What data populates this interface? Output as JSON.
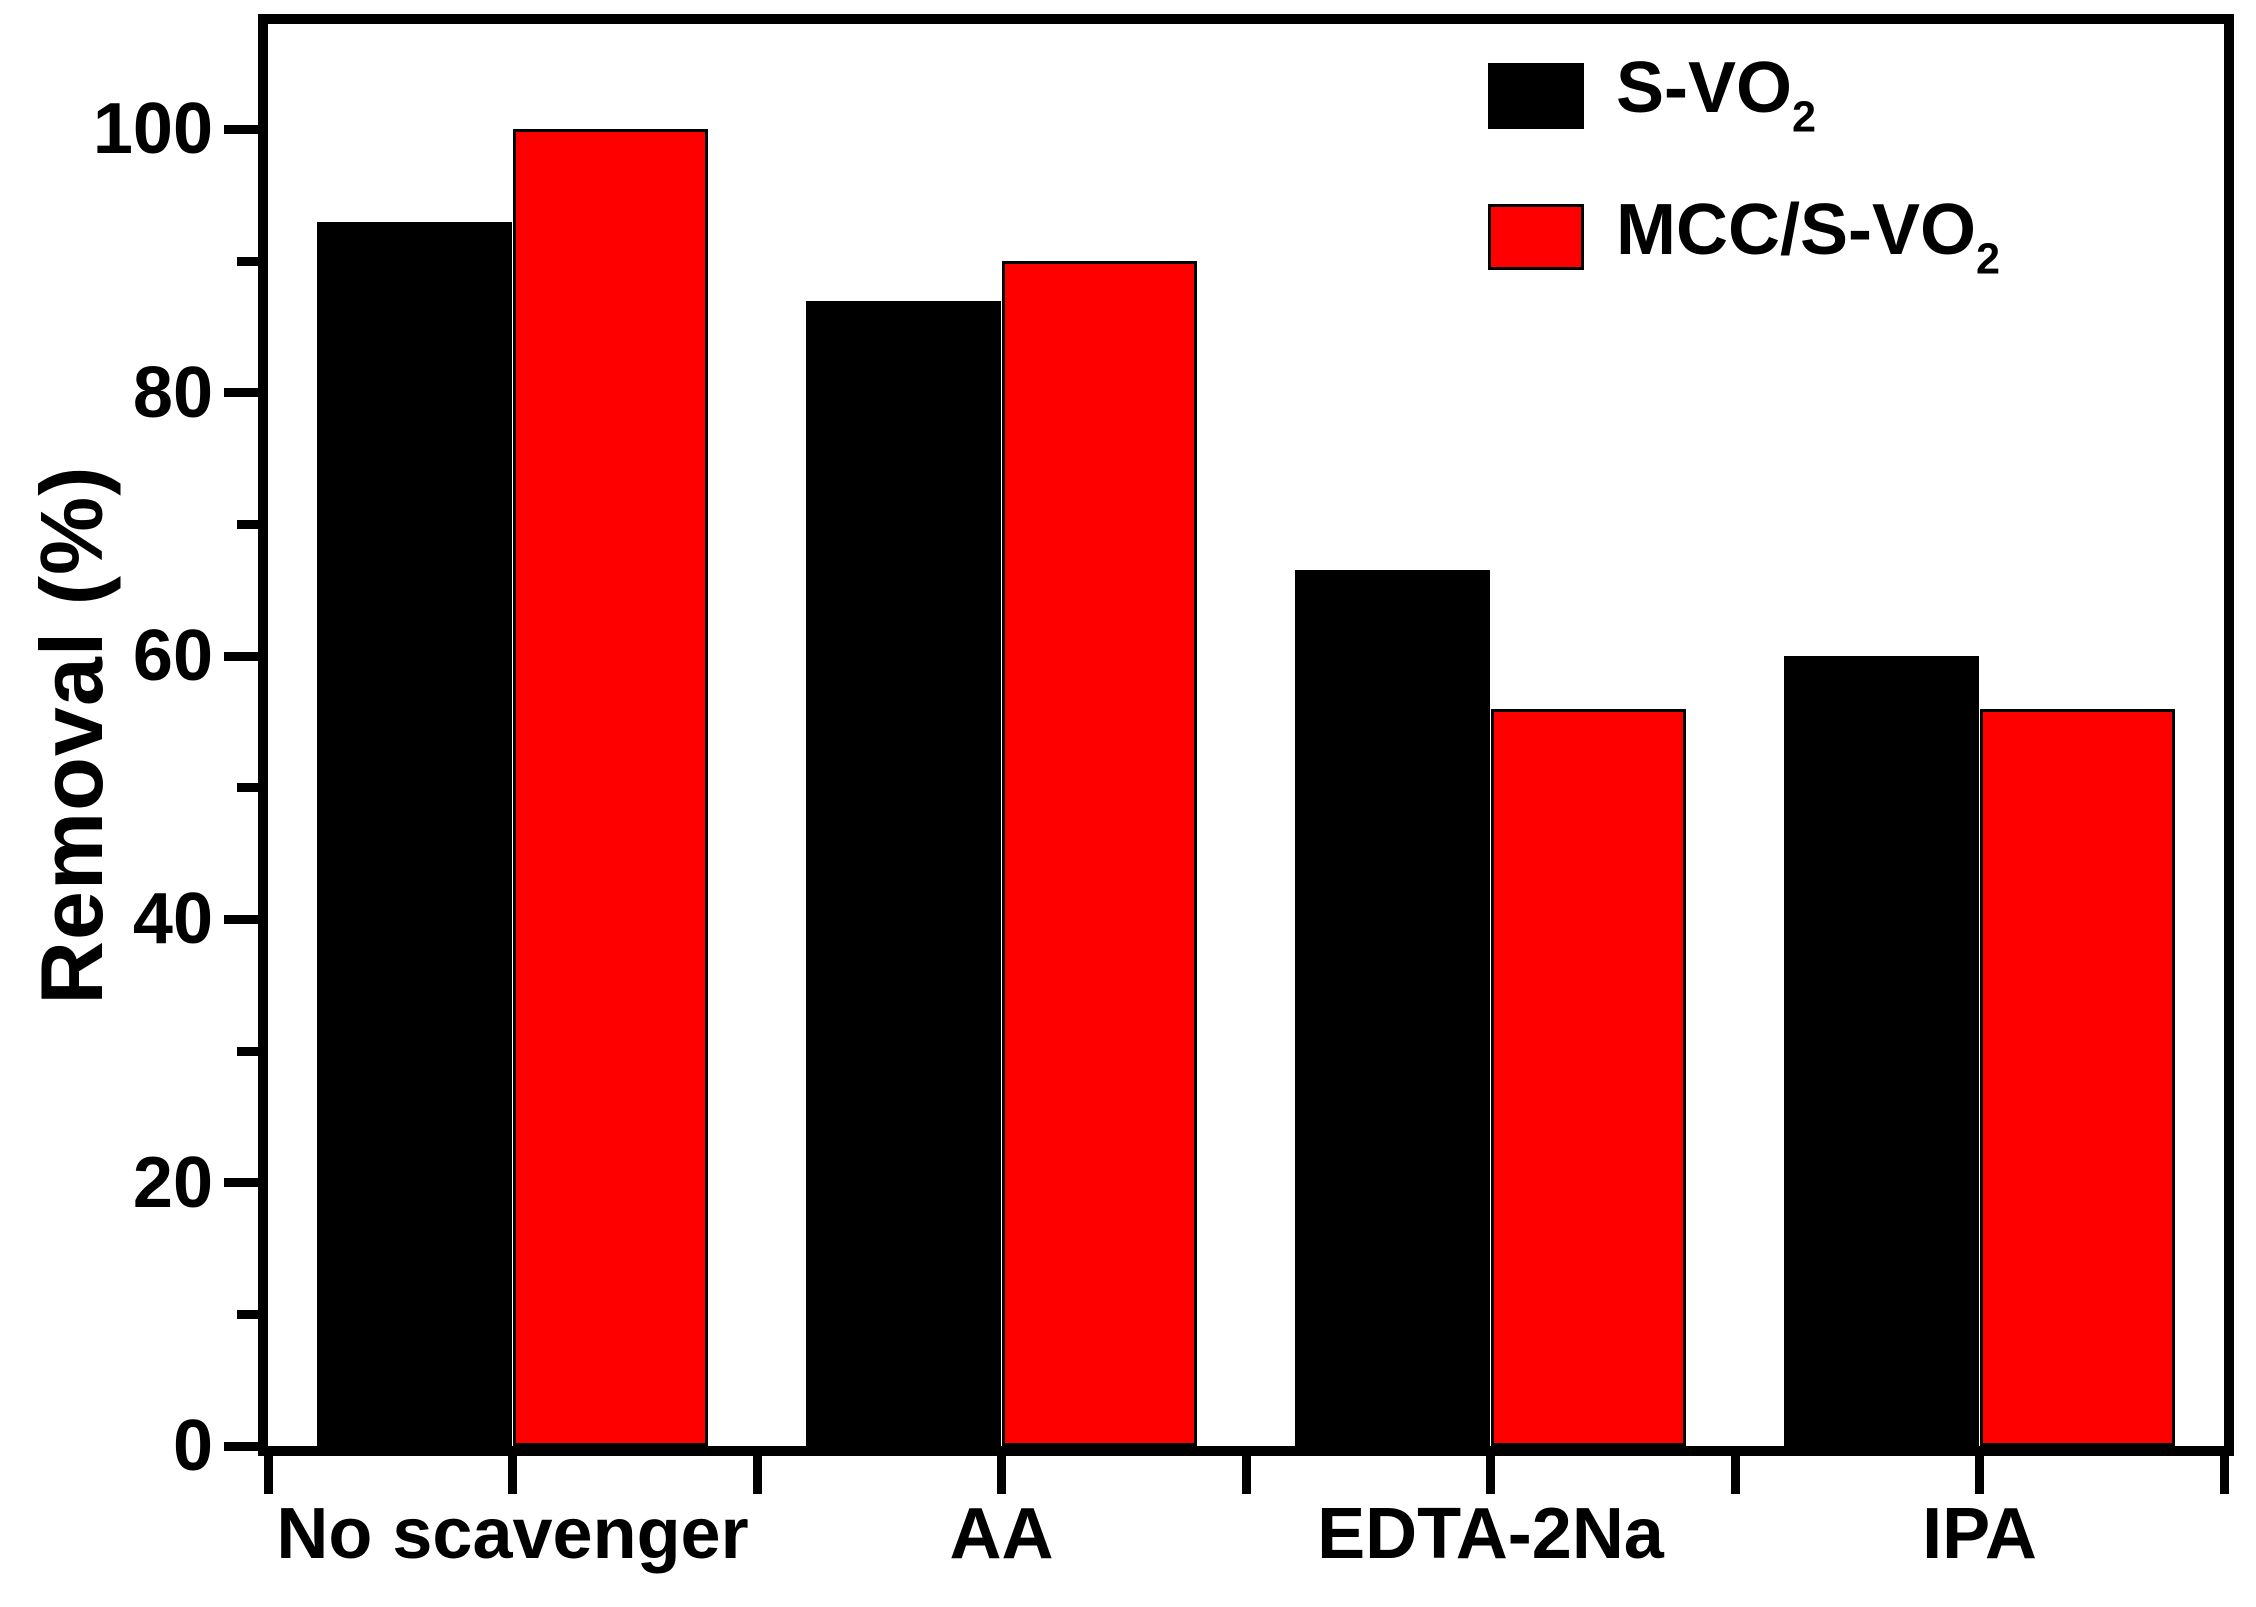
{
  "chart_data": {
    "type": "bar",
    "title": "",
    "categories": [
      "No scavenger",
      "AA",
      "EDTA-2Na",
      "IPA"
    ],
    "series": [
      {
        "name": "S-VO2",
        "label": {
          "base": "S-VO",
          "sub": "2"
        },
        "color": "#000000",
        "values": [
          93,
          87,
          66.5,
          60
        ]
      },
      {
        "name": "MCC/S-VO2",
        "label": {
          "base": "MCC/S-VO",
          "sub": "2"
        },
        "color": "#ff0000",
        "values": [
          100,
          90,
          56,
          56
        ]
      }
    ],
    "xlabel": "",
    "ylabel": "Removal (%)",
    "ylim": [
      0,
      108
    ],
    "yticks_major": [
      0,
      20,
      40,
      60,
      80,
      100
    ],
    "yticks_minor": [
      10,
      30,
      50,
      70,
      90
    ],
    "grid": false,
    "legend_position": "top-right",
    "bar_width_fraction_of_slot": 0.4
  },
  "colors": {
    "background": "#ffffff",
    "axis": "#000000",
    "series_black": "#000000",
    "series_red": "#ff0000"
  }
}
